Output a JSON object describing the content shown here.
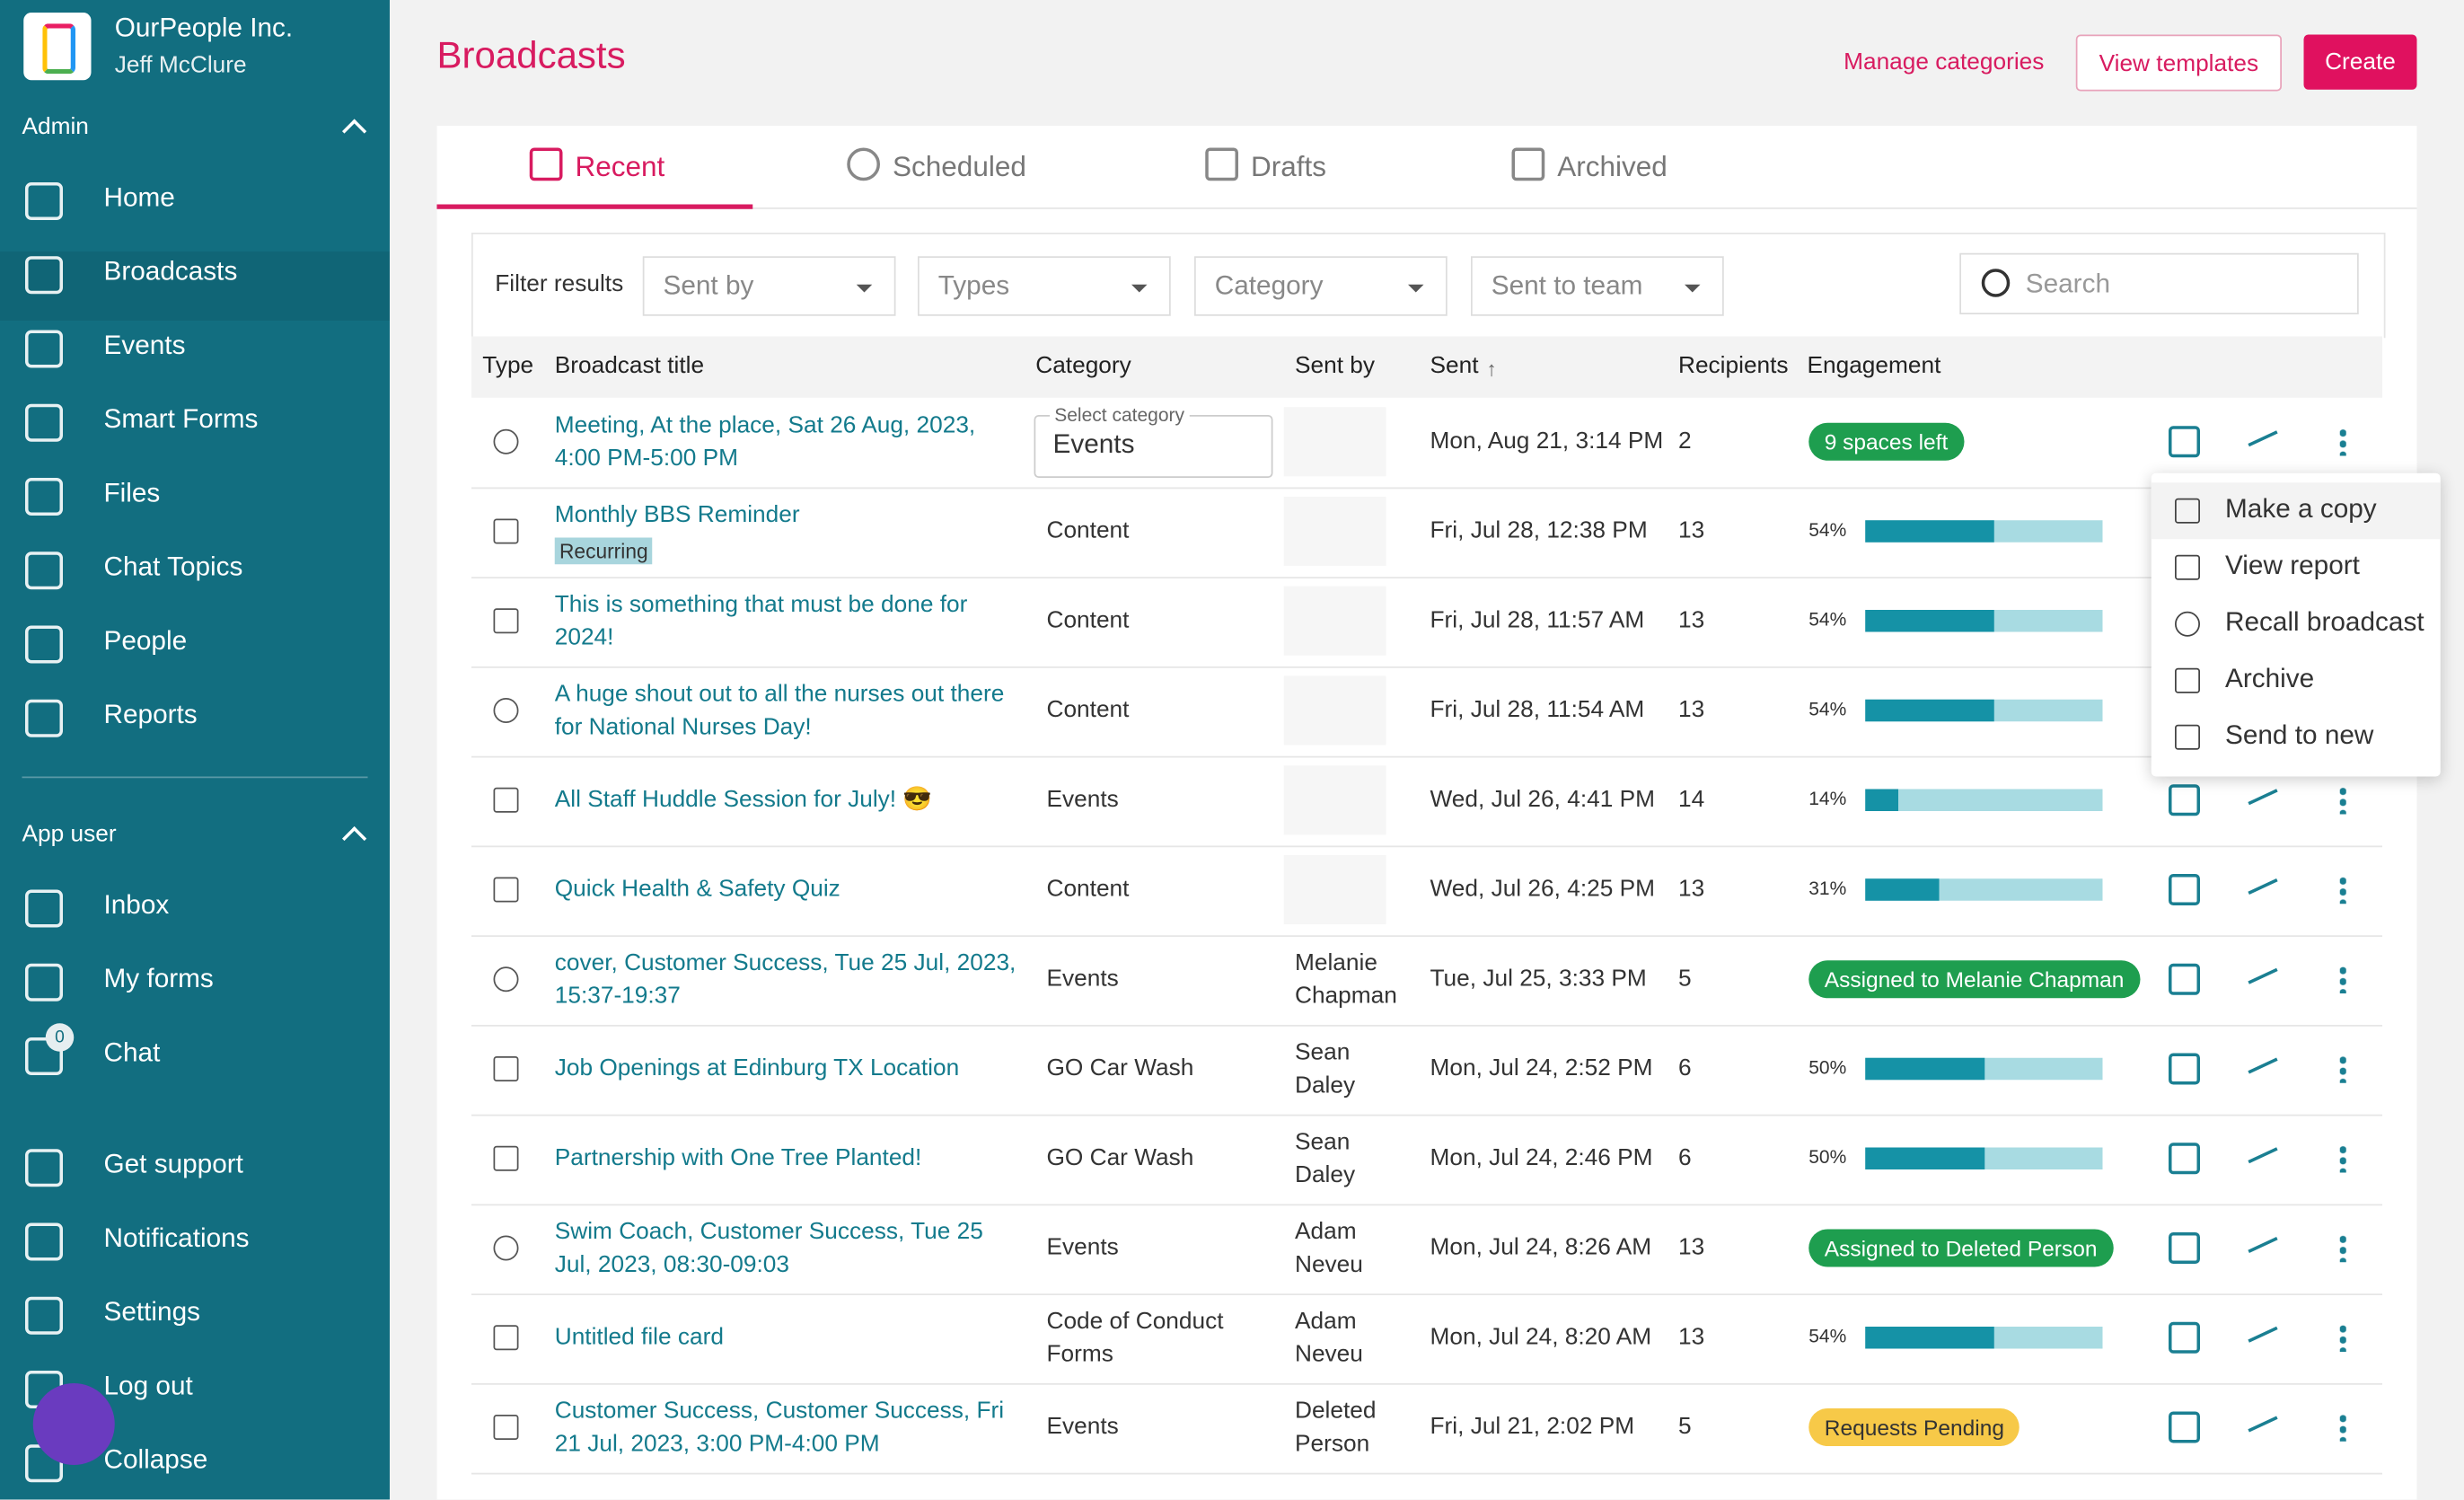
{
  "sidebar": {
    "org": "OurPeople Inc.",
    "user": "Jeff McClure",
    "sections": [
      {
        "title": "Admin",
        "items": [
          "Home",
          "Broadcasts",
          "Events",
          "Smart Forms",
          "Files",
          "Chat Topics",
          "People",
          "Reports"
        ]
      },
      {
        "title": "App user",
        "items": [
          "Inbox",
          "My forms",
          "Chat"
        ]
      }
    ],
    "chat_badge": "0",
    "footer": [
      "Get support",
      "Notifications",
      "Settings",
      "Log out",
      "Collapse"
    ]
  },
  "header": {
    "title": "Broadcasts",
    "actions": [
      "Manage categories",
      "View templates",
      "Create"
    ]
  },
  "tabs": [
    "Recent",
    "Scheduled",
    "Drafts",
    "Archived"
  ],
  "filters": {
    "label": "Filter results",
    "dropdowns": [
      "Sent by",
      "Types",
      "Category",
      "Sent to team"
    ],
    "search": "Search"
  },
  "table": {
    "columns": [
      "Type",
      "Broadcast title",
      "Category",
      "Sent by",
      "Sent",
      "Recipients",
      "Engagement"
    ],
    "rows": [
      {
        "title": "Meeting, At the place, Sat 26 Aug, 2023, 4:00 PM-5:00 PM",
        "category_select": {
          "label": "Select category",
          "value": "Events"
        },
        "sent": "Mon, Aug 21, 3:14 PM",
        "recipients": 2,
        "badge": "9 spaces left",
        "badge_color": "#1e9e4f"
      },
      {
        "title": "Monthly BBS Reminder",
        "tag": "Recurring",
        "category": "Content",
        "sent": "Fri, Jul 28, 12:38 PM",
        "recipients": 13,
        "engagement": {
          "value": 54,
          "label": "54%"
        }
      },
      {
        "title": "This is something that must be done for 2024!",
        "category": "Content",
        "sent": "Fri, Jul 28, 11:57 AM",
        "recipients": 13,
        "engagement": {
          "value": 54,
          "label": "54%"
        }
      },
      {
        "title": "A huge shout out to all the nurses out there for National Nurses Day!",
        "category": "Content",
        "sent": "Fri, Jul 28, 11:54 AM",
        "recipients": 13,
        "engagement": {
          "value": 54,
          "label": "54%"
        }
      },
      {
        "title": "All Staff Huddle Session for July! 😎",
        "category": "Events",
        "sent": "Wed, Jul 26, 4:41 PM",
        "recipients": 14,
        "engagement": {
          "value": 14,
          "label": "14%"
        }
      },
      {
        "title": "Quick Health & Safety Quiz",
        "category": "Content",
        "sent": "Wed, Jul 26, 4:25 PM",
        "recipients": 13,
        "engagement": {
          "value": 31,
          "label": "31%"
        }
      },
      {
        "title": "cover, Customer Success, Tue 25 Jul, 2023, 15:37-19:37",
        "category": "Events",
        "sent_by": "Melanie Chapman",
        "sent": "Tue, Jul 25, 3:33 PM",
        "recipients": 5,
        "badge": "Assigned to Melanie Chapman",
        "badge_color": "#1e9e4f"
      },
      {
        "title": "Job Openings at Edinburg TX Location",
        "category": "GO Car Wash",
        "sent_by": "Sean Daley",
        "sent": "Mon, Jul 24, 2:52 PM",
        "recipients": 6,
        "engagement": {
          "value": 50,
          "label": "50%"
        }
      },
      {
        "title": "Partnership with One Tree Planted!",
        "category": "GO Car Wash",
        "sent_by": "Sean Daley",
        "sent": "Mon, Jul 24, 2:46 PM",
        "recipients": 6,
        "engagement": {
          "value": 50,
          "label": "50%"
        }
      },
      {
        "title": "Swim Coach, Customer Success, Tue 25 Jul, 2023, 08:30-09:03",
        "category": "Events",
        "sent_by": "Adam Neveu",
        "sent": "Mon, Jul 24, 8:26 AM",
        "recipients": 13,
        "badge": "Assigned to Deleted Person",
        "badge_color": "#1e9e4f"
      },
      {
        "title": "Untitled file card",
        "category": "Code of Conduct Forms",
        "sent_by": "Adam Neveu",
        "sent": "Mon, Jul 24, 8:20 AM",
        "recipients": 13,
        "engagement": {
          "value": 54,
          "label": "54%"
        }
      },
      {
        "title": "Customer Success, Customer Success, Fri 21 Jul, 2023, 3:00 PM-4:00 PM",
        "category": "Events",
        "sent_by": "Deleted Person",
        "sent": "Fri, Jul 21, 2:02 PM",
        "recipients": 5,
        "badge": "Requests Pending",
        "badge_color": "#f7c948"
      }
    ]
  },
  "menu": [
    "Make a copy",
    "View report",
    "Recall broadcast",
    "Archive",
    "Send to new"
  ]
}
